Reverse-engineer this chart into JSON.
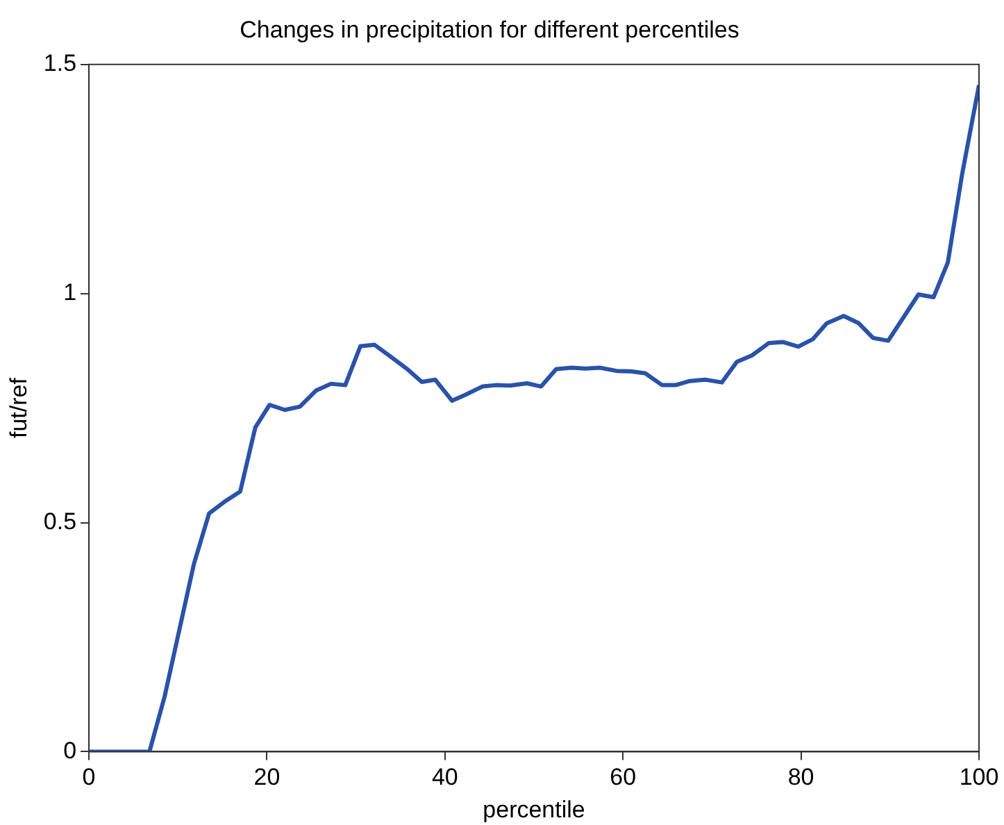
{
  "chart_data": {
    "type": "line",
    "title": "Changes in precipitation for different percentiles",
    "xlabel": "percentile",
    "ylabel": "fut/ref",
    "x": [
      0,
      6.8,
      8.5,
      11.8,
      13.5,
      15.2,
      17.0,
      18.7,
      20.3,
      22.0,
      23.7,
      25.5,
      27.2,
      28.8,
      30.5,
      32.1,
      34.4,
      35.7,
      37.4,
      38.9,
      40.8,
      42.3,
      44.2,
      45.7,
      47.3,
      49.2,
      50.8,
      52.5,
      54.2,
      55.8,
      57.4,
      59.3,
      60.9,
      62.5,
      64.4,
      65.9,
      67.5,
      69.2,
      71.1,
      72.8,
      74.5,
      76.4,
      78.0,
      79.7,
      81.3,
      82.9,
      84.8,
      86.5,
      88.1,
      89.8,
      93.2,
      94.9,
      96.5,
      98.1,
      100
    ],
    "series": [
      {
        "color": "#2a52a8",
        "values": [
          0,
          0,
          0.12,
          0.41,
          0.52,
          0.545,
          0.568,
          0.708,
          0.757,
          0.746,
          0.753,
          0.788,
          0.803,
          0.8,
          0.885,
          0.888,
          0.855,
          0.836,
          0.807,
          0.812,
          0.766,
          0.779,
          0.797,
          0.8,
          0.799,
          0.804,
          0.797,
          0.835,
          0.838,
          0.836,
          0.838,
          0.831,
          0.83,
          0.826,
          0.8,
          0.8,
          0.809,
          0.812,
          0.806,
          0.851,
          0.865,
          0.892,
          0.894,
          0.884,
          0.9,
          0.935,
          0.951,
          0.935,
          0.903,
          0.897,
          0.998,
          0.992,
          1.068,
          1.26,
          1.455
        ]
      }
    ],
    "xlim": [
      0,
      100
    ],
    "xticks": [
      0,
      20,
      40,
      60,
      80,
      100
    ],
    "ylim": [
      0,
      1.5
    ],
    "yticks": [
      0,
      0.5,
      1,
      1.5
    ],
    "grid": false,
    "legend": false,
    "marker": "none",
    "line_style": "solid"
  }
}
